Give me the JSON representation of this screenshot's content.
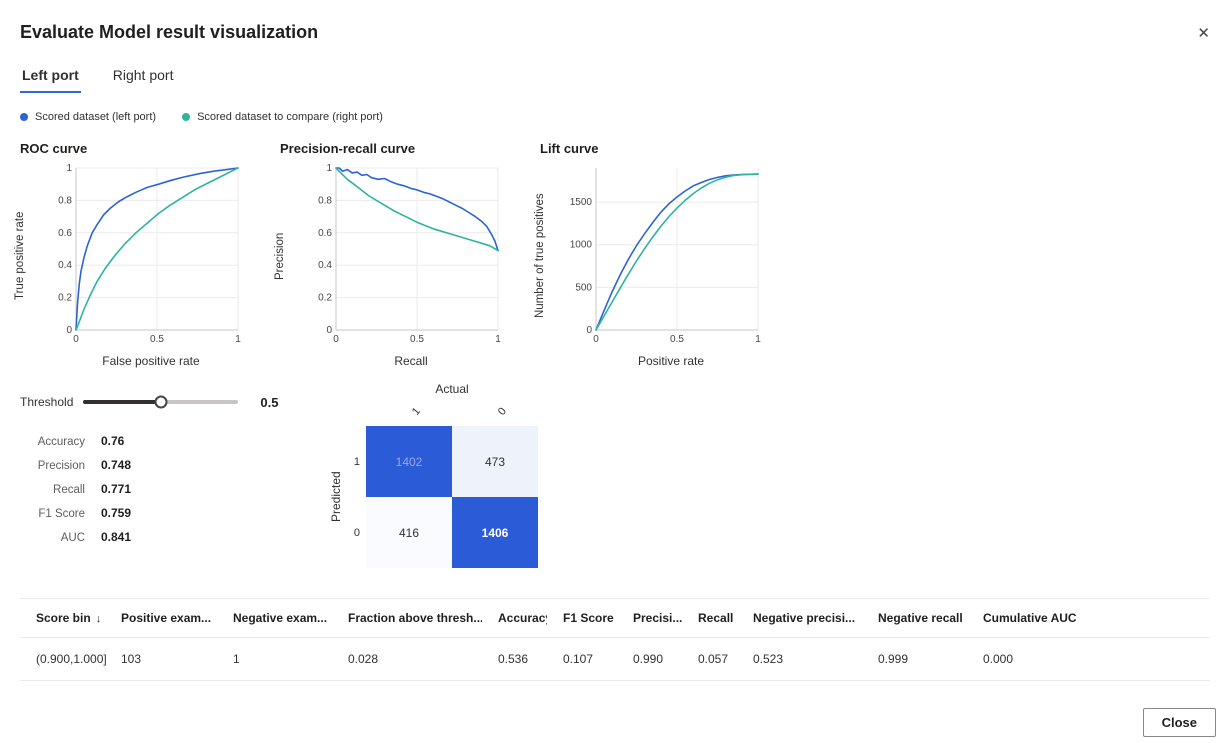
{
  "dialog": {
    "title": "Evaluate Model result visualization",
    "close_icon": "✕",
    "close_label": "Close"
  },
  "colors": {
    "accent": "#2b6bd8",
    "series_blue": "#2d64d4",
    "series_teal": "#2eb3a1",
    "matrix_dark": "#2b5bd7",
    "matrix_light": "#eef3fb"
  },
  "tabs": [
    {
      "label": "Left port",
      "active": true
    },
    {
      "label": "Right port",
      "active": false
    }
  ],
  "legend": [
    {
      "label": "Scored dataset (left port)",
      "color": "#2d64d4"
    },
    {
      "label": "Scored dataset to compare (right port)",
      "color": "#2eb3a1"
    }
  ],
  "threshold": {
    "label": "Threshold",
    "value": "0.5"
  },
  "metrics": [
    {
      "label": "Accuracy",
      "value": "0.76"
    },
    {
      "label": "Precision",
      "value": "0.748"
    },
    {
      "label": "Recall",
      "value": "0.771"
    },
    {
      "label": "F1 Score",
      "value": "0.759"
    },
    {
      "label": "AUC",
      "value": "0.841"
    }
  ],
  "confusion_matrix": {
    "actual_label": "Actual",
    "predicted_label": "Predicted",
    "col_labels": [
      "1",
      "0"
    ],
    "row_labels": [
      "1",
      "0"
    ],
    "cells": [
      [
        {
          "value": "1402",
          "bg": "#2b5bd7",
          "fg": "#93abe8",
          "bold": false
        },
        {
          "value": "473",
          "bg": "#eef3fb",
          "fg": "#323130",
          "bold": false
        }
      ],
      [
        {
          "value": "416",
          "bg": "#f9fbfe",
          "fg": "#323130",
          "bold": false
        },
        {
          "value": "1406",
          "bg": "#2b5bd7",
          "fg": "#ffffff",
          "bold": true
        }
      ]
    ]
  },
  "table": {
    "sort": {
      "column_index": 0,
      "icon": "↓"
    },
    "headers": [
      "Score bin",
      "Positive exam...",
      "Negative exam...",
      "Fraction above thresh...",
      "Accuracy",
      "F1 Score",
      "Precisi...",
      "Recall",
      "Negative precisi...",
      "Negative recall",
      "Cumulative AUC"
    ],
    "rows": [
      [
        "(0.900,1.000]",
        "103",
        "1",
        "0.028",
        "0.536",
        "0.107",
        "0.990",
        "0.057",
        "0.523",
        "0.999",
        "0.000"
      ]
    ]
  },
  "chart_data": [
    {
      "type": "line",
      "title": "ROC curve",
      "xlabel": "False positive rate",
      "ylabel": "True positive rate",
      "xlim": [
        0,
        1
      ],
      "ylim": [
        0,
        1
      ],
      "xticks": [
        0,
        0.5,
        1
      ],
      "yticks": [
        0,
        0.2,
        0.4,
        0.6,
        0.8,
        1
      ],
      "series": [
        {
          "name": "Scored dataset (left port)",
          "color": "#2d64d4",
          "points": [
            [
              0,
              0
            ],
            [
              0.01,
              0.17
            ],
            [
              0.02,
              0.28
            ],
            [
              0.03,
              0.36
            ],
            [
              0.05,
              0.45
            ],
            [
              0.07,
              0.52
            ],
            [
              0.1,
              0.6
            ],
            [
              0.13,
              0.65
            ],
            [
              0.17,
              0.71
            ],
            [
              0.21,
              0.75
            ],
            [
              0.26,
              0.79
            ],
            [
              0.31,
              0.82
            ],
            [
              0.37,
              0.85
            ],
            [
              0.44,
              0.88
            ],
            [
              0.51,
              0.9
            ],
            [
              0.59,
              0.925
            ],
            [
              0.67,
              0.945
            ],
            [
              0.76,
              0.965
            ],
            [
              0.85,
              0.98
            ],
            [
              0.93,
              0.99
            ],
            [
              1,
              1
            ]
          ]
        },
        {
          "name": "Scored dataset to compare (right port)",
          "color": "#2eb3a1",
          "points": [
            [
              0,
              0
            ],
            [
              0.02,
              0.05
            ],
            [
              0.05,
              0.13
            ],
            [
              0.09,
              0.22
            ],
            [
              0.13,
              0.3
            ],
            [
              0.18,
              0.38
            ],
            [
              0.24,
              0.46
            ],
            [
              0.3,
              0.53
            ],
            [
              0.37,
              0.6
            ],
            [
              0.44,
              0.66
            ],
            [
              0.51,
              0.72
            ],
            [
              0.58,
              0.77
            ],
            [
              0.66,
              0.82
            ],
            [
              0.74,
              0.87
            ],
            [
              0.82,
              0.91
            ],
            [
              0.9,
              0.95
            ],
            [
              0.96,
              0.98
            ],
            [
              1,
              1
            ]
          ]
        }
      ]
    },
    {
      "type": "line",
      "title": "Precision-recall curve",
      "xlabel": "Recall",
      "ylabel": "Precision",
      "xlim": [
        0,
        1
      ],
      "ylim": [
        0,
        1
      ],
      "xticks": [
        0,
        0.5,
        1
      ],
      "yticks": [
        0,
        0.2,
        0.4,
        0.6,
        0.8,
        1
      ],
      "series": [
        {
          "name": "Scored dataset (left port)",
          "color": "#2d64d4",
          "points": [
            [
              0,
              1
            ],
            [
              0.02,
              1
            ],
            [
              0.04,
              0.98
            ],
            [
              0.07,
              0.99
            ],
            [
              0.1,
              0.97
            ],
            [
              0.13,
              0.975
            ],
            [
              0.16,
              0.955
            ],
            [
              0.19,
              0.96
            ],
            [
              0.22,
              0.94
            ],
            [
              0.26,
              0.93
            ],
            [
              0.3,
              0.935
            ],
            [
              0.34,
              0.915
            ],
            [
              0.38,
              0.9
            ],
            [
              0.42,
              0.89
            ],
            [
              0.46,
              0.875
            ],
            [
              0.5,
              0.865
            ],
            [
              0.54,
              0.85
            ],
            [
              0.58,
              0.84
            ],
            [
              0.62,
              0.825
            ],
            [
              0.66,
              0.81
            ],
            [
              0.7,
              0.79
            ],
            [
              0.74,
              0.77
            ],
            [
              0.78,
              0.75
            ],
            [
              0.82,
              0.725
            ],
            [
              0.86,
              0.7
            ],
            [
              0.9,
              0.67
            ],
            [
              0.93,
              0.64
            ],
            [
              0.96,
              0.59
            ],
            [
              0.98,
              0.55
            ],
            [
              1,
              0.49
            ]
          ]
        },
        {
          "name": "Scored dataset to compare (right port)",
          "color": "#2eb3a1",
          "points": [
            [
              0,
              1
            ],
            [
              0.03,
              0.97
            ],
            [
              0.07,
              0.93
            ],
            [
              0.11,
              0.9
            ],
            [
              0.15,
              0.87
            ],
            [
              0.2,
              0.83
            ],
            [
              0.25,
              0.8
            ],
            [
              0.3,
              0.77
            ],
            [
              0.35,
              0.74
            ],
            [
              0.4,
              0.715
            ],
            [
              0.45,
              0.69
            ],
            [
              0.5,
              0.665
            ],
            [
              0.55,
              0.645
            ],
            [
              0.6,
              0.625
            ],
            [
              0.65,
              0.61
            ],
            [
              0.7,
              0.595
            ],
            [
              0.75,
              0.58
            ],
            [
              0.8,
              0.565
            ],
            [
              0.85,
              0.55
            ],
            [
              0.9,
              0.535
            ],
            [
              0.95,
              0.52
            ],
            [
              1,
              0.49
            ]
          ]
        }
      ]
    },
    {
      "type": "line",
      "title": "Lift curve",
      "xlabel": "Positive rate",
      "ylabel": "Number of true positives",
      "xlim": [
        0,
        1
      ],
      "ylim": [
        0,
        1900
      ],
      "xticks": [
        0,
        0.5,
        1
      ],
      "yticks": [
        0,
        500,
        1000,
        1500
      ],
      "series": [
        {
          "name": "Scored dataset (left port)",
          "color": "#2d64d4",
          "points": [
            [
              0,
              0
            ],
            [
              0.05,
              230
            ],
            [
              0.1,
              450
            ],
            [
              0.15,
              650
            ],
            [
              0.2,
              830
            ],
            [
              0.25,
              990
            ],
            [
              0.3,
              1130
            ],
            [
              0.35,
              1260
            ],
            [
              0.4,
              1380
            ],
            [
              0.45,
              1480
            ],
            [
              0.5,
              1560
            ],
            [
              0.55,
              1630
            ],
            [
              0.6,
              1690
            ],
            [
              0.65,
              1730
            ],
            [
              0.7,
              1765
            ],
            [
              0.75,
              1790
            ],
            [
              0.8,
              1808
            ],
            [
              0.85,
              1818
            ],
            [
              0.9,
              1824
            ],
            [
              1,
              1828
            ]
          ]
        },
        {
          "name": "Scored dataset to compare (right port)",
          "color": "#2eb3a1",
          "points": [
            [
              0,
              0
            ],
            [
              0.05,
              165
            ],
            [
              0.1,
              330
            ],
            [
              0.15,
              495
            ],
            [
              0.2,
              655
            ],
            [
              0.25,
              810
            ],
            [
              0.3,
              955
            ],
            [
              0.35,
              1090
            ],
            [
              0.4,
              1215
            ],
            [
              0.45,
              1330
            ],
            [
              0.5,
              1430
            ],
            [
              0.55,
              1520
            ],
            [
              0.6,
              1600
            ],
            [
              0.65,
              1665
            ],
            [
              0.7,
              1720
            ],
            [
              0.75,
              1762
            ],
            [
              0.8,
              1792
            ],
            [
              0.85,
              1812
            ],
            [
              0.9,
              1822
            ],
            [
              1,
              1828
            ]
          ]
        }
      ]
    }
  ]
}
